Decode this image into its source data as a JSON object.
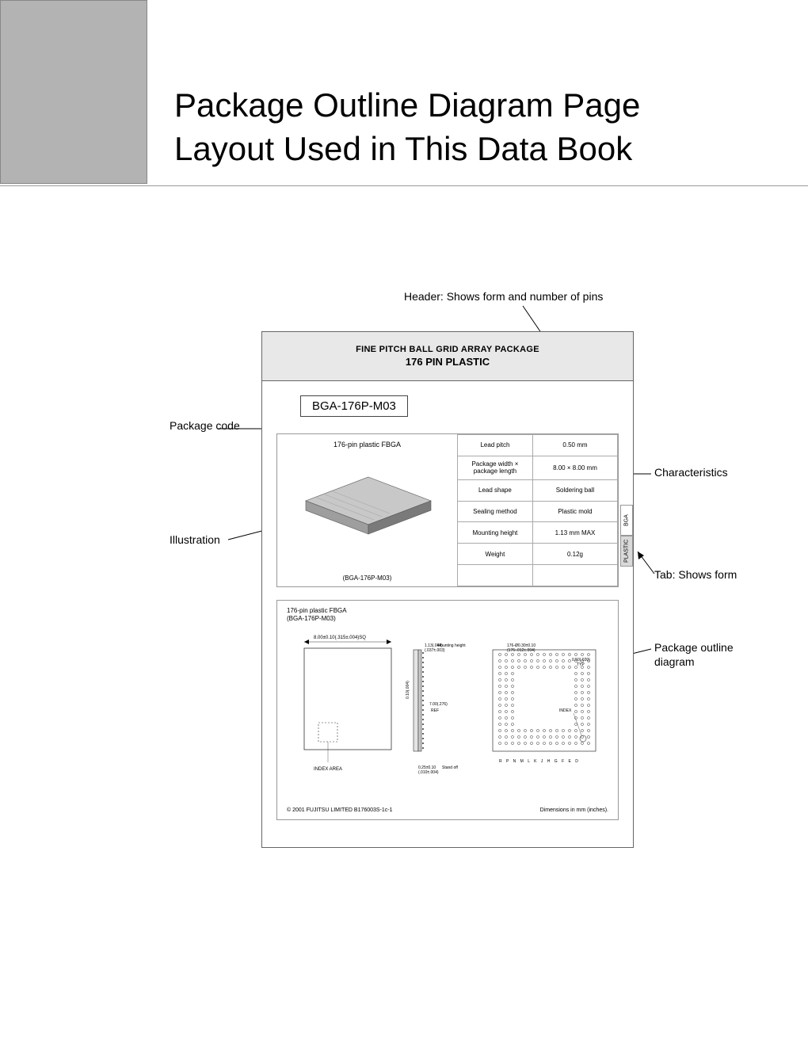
{
  "colors": {
    "corner_box": "#b3b3b3",
    "hr": "#999999",
    "doc_header_bg": "#e8e8e8",
    "border": "#666666",
    "table_border": "#aaaaaa",
    "tab_active_bg": "#d9d9d9",
    "text": "#000000",
    "chip_top": "#c8c8c8",
    "chip_side_left": "#9e9e9e",
    "chip_side_right": "#7a7a7a"
  },
  "page": {
    "title_line1": "Package Outline Diagram Page",
    "title_line2": "Layout Used in This Data Book",
    "title_fontsize": 42
  },
  "callouts": {
    "header": "Header: Shows form and number of pins",
    "package_code": "Package code",
    "illustration": "Illustration",
    "characteristics": "Characteristics",
    "tab": "Tab: Shows form",
    "outline": "Package outline diagram"
  },
  "doc": {
    "header_line1": "FINE PITCH BALL GRID ARRAY PACKAGE",
    "header_line2": "176 PIN PLASTIC",
    "package_code": "BGA-176P-M03",
    "illustration_title": "176-pin plastic FBGA",
    "illustration_code": "(BGA-176P-M03)"
  },
  "characteristics": [
    {
      "key": "Lead pitch",
      "value": "0.50 mm"
    },
    {
      "key": "Package width × package length",
      "value": "8.00 × 8.00 mm"
    },
    {
      "key": "Lead shape",
      "value": "Soldering ball"
    },
    {
      "key": "Sealing method",
      "value": "Plastic mold"
    },
    {
      "key": "Mounting height",
      "value": "1.13 mm MAX"
    },
    {
      "key": "Weight",
      "value": "0.12g"
    },
    {
      "key": "",
      "value": ""
    }
  ],
  "side_tab": {
    "top_label": "BGA",
    "bottom_label": "PLASTIC"
  },
  "outline": {
    "title_line1": "176-pin plastic FBGA",
    "title_line2": "(BGA-176P-M03)",
    "top_dim": "8.00±0.10(.315±.004)SQ",
    "mount_dim_a": "1.13(.044)",
    "mount_dim_b": "(.037±.003)",
    "mount_label": "Mounting height",
    "ball_dim": "176-Ø0.30±0.10",
    "ball_dim2": "(176-.012±.004)",
    "typ": "0.50(.020)",
    "typ_label": "TYP",
    "index_label": "INDEX",
    "index_area_label": "INDEX AREA",
    "standoff_dim": "0.25±0.10",
    "standoff_dim2": "(.010±.004)",
    "standoff_label": "Stand off",
    "ref_dim_a": "0.10(.004)",
    "ref_dim_b": "7.00(.276)",
    "ref_label": "REF",
    "column_letters": "R P N M L K J H G F E D",
    "copyright": "© 2001 FUJITSU LIMITED B176003S-1c-1",
    "units": "Dimensions in mm (inches)."
  }
}
